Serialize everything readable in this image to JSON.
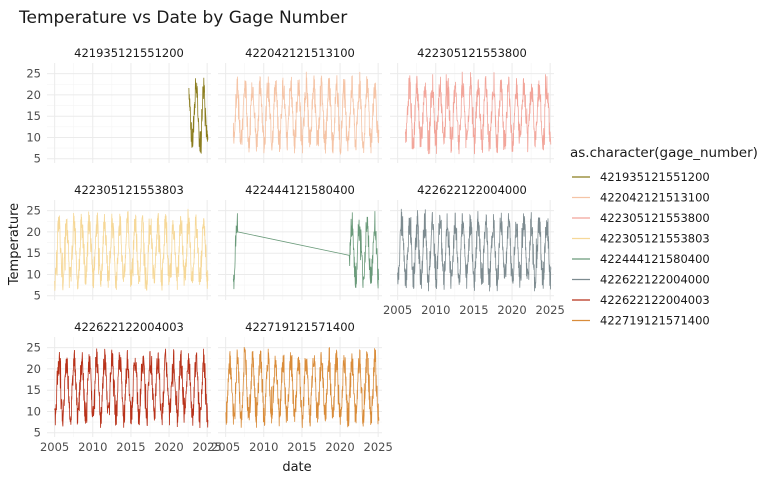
{
  "chart_data": {
    "type": "line",
    "title": "Temperature vs Date by Gage Number",
    "xlabel": "date",
    "ylabel": "Temperature",
    "xlim": [
      2004.0,
      2025.5
    ],
    "ylim": [
      4.0,
      27.5
    ],
    "x_ticks": [
      2005,
      2010,
      2015,
      2020,
      2025
    ],
    "y_ticks": [
      5,
      10,
      15,
      20,
      25
    ],
    "facet_layout": "3 columns x 3 rows, shared axes",
    "grid": true,
    "legend": {
      "title": "as.character(gage_number)",
      "position": "right"
    },
    "series": [
      {
        "name": "421935121551200",
        "color": "#8B7D1E",
        "start": 2022.6,
        "end": 2025.1,
        "gap": null
      },
      {
        "name": "422042121513100",
        "color": "#F5C4A6",
        "start": 2006.0,
        "end": 2025.1,
        "gap": null
      },
      {
        "name": "422305121553800",
        "color": "#F2A59A",
        "start": 2006.0,
        "end": 2025.1,
        "gap": null
      },
      {
        "name": "422305121553803",
        "color": "#F6D898",
        "start": 2005.0,
        "end": 2025.1,
        "gap": null
      },
      {
        "name": "422444121580400",
        "color": "#6A9A7A",
        "start": 2006.0,
        "end": 2025.1,
        "gap": [
          2006.6,
          2021.2
        ]
      },
      {
        "name": "422622122004000",
        "color": "#7D8B90",
        "start": 2005.0,
        "end": 2025.1,
        "gap": null
      },
      {
        "name": "422622122004003",
        "color": "#B8321A",
        "start": 2005.0,
        "end": 2025.1,
        "gap": null
      },
      {
        "name": "422719121571400",
        "color": "#D98C3A",
        "start": 2005.0,
        "end": 2025.1,
        "gap": null
      }
    ]
  }
}
